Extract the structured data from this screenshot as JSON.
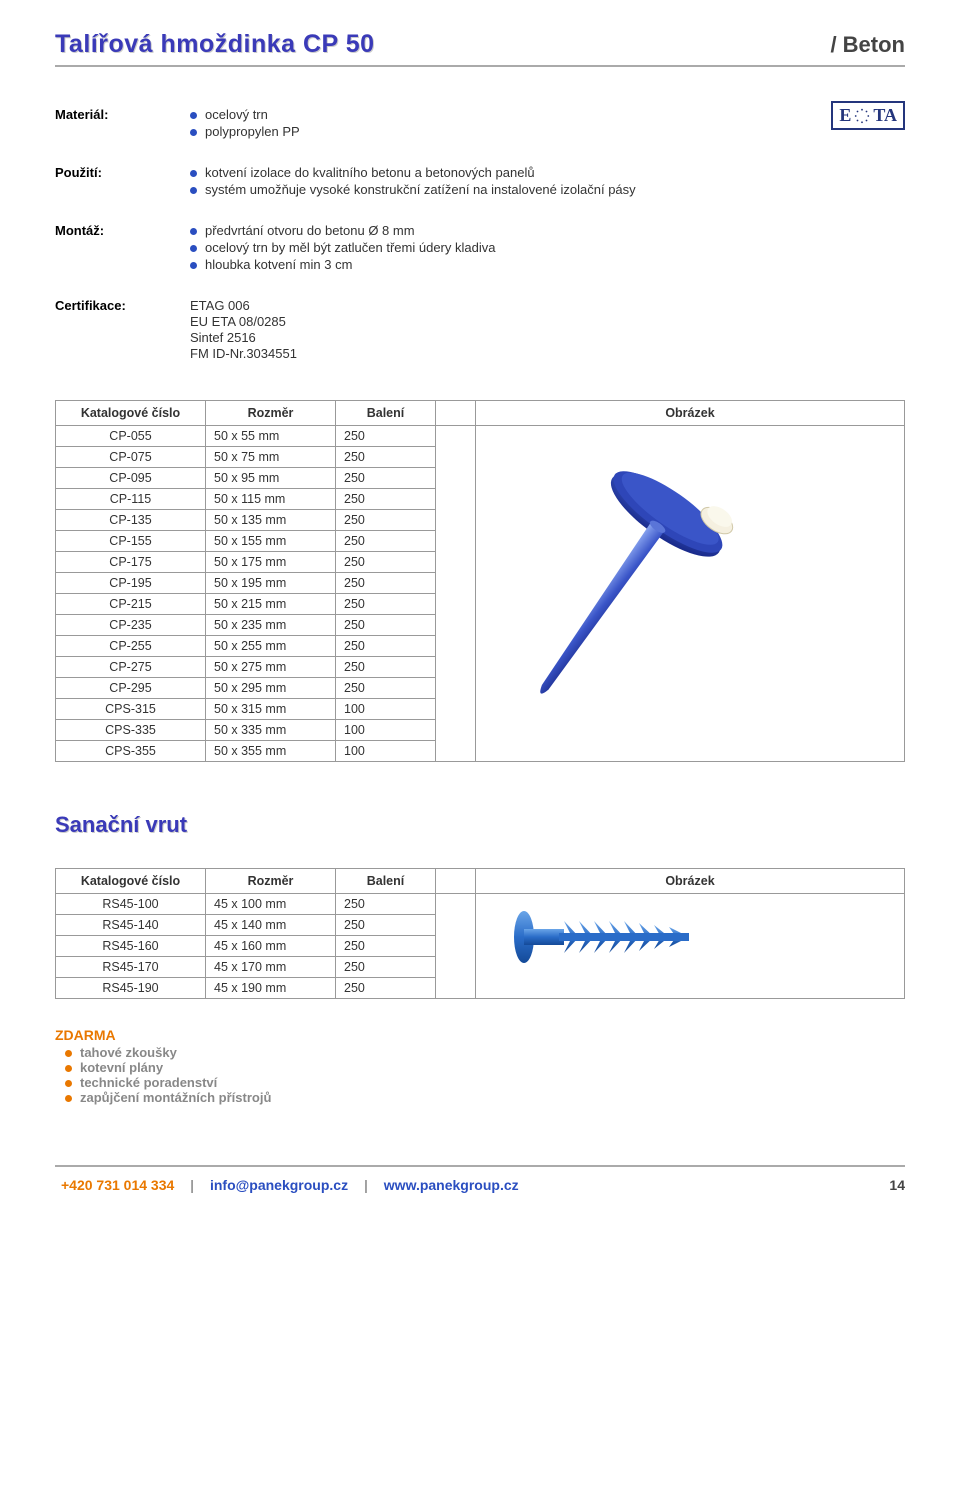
{
  "header": {
    "title": "Talířová hmoždinka CP 50",
    "category": "/ Beton"
  },
  "eta_badge": "E   TA",
  "specs": [
    {
      "label": "Materiál:",
      "bullets": [
        {
          "text": "ocelový trn",
          "color": "#2a4ec0"
        },
        {
          "text": "polypropylen PP",
          "color": "#2a4ec0"
        }
      ]
    },
    {
      "label": "Použití:",
      "bullets": [
        {
          "text": "kotvení izolace do kvalitního betonu a betonových panelů",
          "color": "#2a4ec0"
        },
        {
          "text": "systém umožňuje vysoké konstrukční zatížení na instalovené izolační pásy",
          "color": "#2a4ec0"
        }
      ]
    },
    {
      "label": "Montáž:",
      "bullets": [
        {
          "text": "předvrtání otvoru do betonu Ø 8 mm",
          "color": "#2a4ec0"
        },
        {
          "text": "ocelový trn by měl být zatlučen třemi údery kladiva",
          "color": "#2a4ec0"
        },
        {
          "text": "hloubka kotvení min 3 cm",
          "color": "#2a4ec0"
        }
      ]
    },
    {
      "label": "Certifikace:",
      "lines": [
        "ETAG 006",
        "EU ETA 08/0285",
        "Sintef 2516",
        "FM ID-Nr.3034551"
      ]
    }
  ],
  "table1": {
    "headers": [
      "Katalogové číslo",
      "Rozměr",
      "Balení",
      "",
      "Obrázek"
    ],
    "rows": [
      [
        "CP-055",
        "50 x 55 mm",
        "250"
      ],
      [
        "CP-075",
        "50 x 75 mm",
        "250"
      ],
      [
        "CP-095",
        "50 x 95 mm",
        "250"
      ],
      [
        "CP-115",
        "50 x 115 mm",
        "250"
      ],
      [
        "CP-135",
        "50 x 135 mm",
        "250"
      ],
      [
        "CP-155",
        "50 x 155 mm",
        "250"
      ],
      [
        "CP-175",
        "50 x 175 mm",
        "250"
      ],
      [
        "CP-195",
        "50 x 195 mm",
        "250"
      ],
      [
        "CP-215",
        "50 x 215 mm",
        "250"
      ],
      [
        "CP-235",
        "50 x 235 mm",
        "250"
      ],
      [
        "CP-255",
        "50 x 255 mm",
        "250"
      ],
      [
        "CP-275",
        "50 x 275 mm",
        "250"
      ],
      [
        "CP-295",
        "50 x 295 mm",
        "250"
      ],
      [
        "CPS-315",
        "50 x 315 mm",
        "100"
      ],
      [
        "CPS-335",
        "50 x 335 mm",
        "100"
      ],
      [
        "CPS-355",
        "50 x 355 mm",
        "100"
      ]
    ]
  },
  "section2_title": "Sanační vrut",
  "table2": {
    "headers": [
      "Katalogové číslo",
      "Rozměr",
      "Balení",
      "",
      "Obrázek"
    ],
    "rows": [
      [
        "RS45-100",
        "45 x 100 mm",
        "250"
      ],
      [
        "RS45-140",
        "45 x 140 mm",
        "250"
      ],
      [
        "RS45-160",
        "45 x 160 mm",
        "250"
      ],
      [
        "RS45-170",
        "45 x 170 mm",
        "250"
      ],
      [
        "RS45-190",
        "45 x 190 mm",
        "250"
      ]
    ]
  },
  "zdarma": {
    "title": "ZDARMA",
    "items": [
      {
        "text": "tahové zkoušky",
        "color": "#e97800"
      },
      {
        "text": "kotevní plány",
        "color": "#e97800"
      },
      {
        "text": "technické poradenství",
        "color": "#e97800"
      },
      {
        "text": "zapůjčení montážních přístrojů",
        "color": "#e97800"
      }
    ]
  },
  "footer": {
    "phone": "+420 731 014 334",
    "sep": "|",
    "email": "info@panekgroup.cz",
    "web": "www.panekgroup.cz",
    "page": "14"
  },
  "colors": {
    "title_blue": "#3a3ab8",
    "bullet_blue": "#2a4ec0",
    "orange": "#e97800",
    "gray_text": "#888888",
    "border": "#999999",
    "hr": "#aaaaaa",
    "eta_border": "#24357c"
  }
}
